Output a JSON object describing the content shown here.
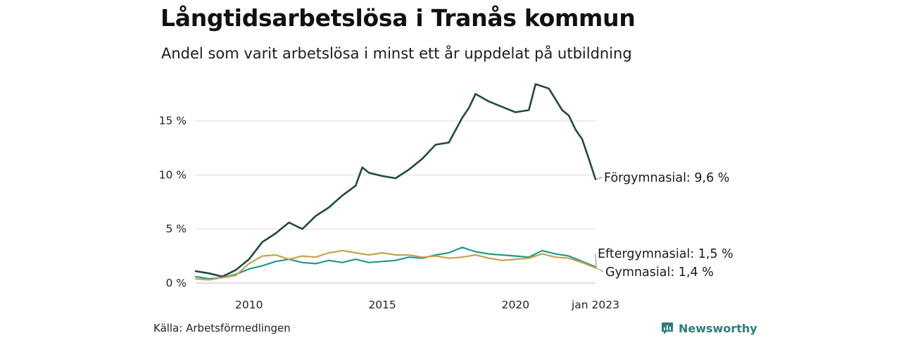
{
  "title": "Långtidsarbetslösa i Tranås kommun",
  "subtitle": "Andel som varit arbetslösa i minst ett år uppdelat på utbildning",
  "source": "Källa: Arbetsförmedlingen",
  "brand": {
    "name": "Newsworthy",
    "icon": "bar-chart-speech-icon",
    "color": "#2a7f78"
  },
  "chart_data": {
    "type": "line",
    "x_range": [
      "2008-01",
      "2023-01"
    ],
    "ylim": [
      0,
      18.5
    ],
    "grid": true,
    "y_ticks": [
      {
        "value": 0,
        "label": "0 %"
      },
      {
        "value": 5,
        "label": "5 %"
      },
      {
        "value": 10,
        "label": "10 %"
      },
      {
        "value": 15,
        "label": "15 %"
      }
    ],
    "x_ticks": [
      {
        "value": "2010-01",
        "label": "2010"
      },
      {
        "value": "2015-01",
        "label": "2015"
      },
      {
        "value": "2020-01",
        "label": "2020"
      },
      {
        "value": "2023-01",
        "label": "jan 2023"
      }
    ],
    "series": [
      {
        "name": "Förgymnasial",
        "end_label": "Förgymnasial: 9,6 %",
        "color": "#1f4a40",
        "points": [
          [
            "2008-01",
            1.1
          ],
          [
            "2008-07",
            0.9
          ],
          [
            "2009-01",
            0.6
          ],
          [
            "2009-07",
            1.2
          ],
          [
            "2010-01",
            2.2
          ],
          [
            "2010-07",
            3.8
          ],
          [
            "2011-01",
            4.6
          ],
          [
            "2011-07",
            5.6
          ],
          [
            "2012-01",
            5.0
          ],
          [
            "2012-07",
            6.2
          ],
          [
            "2013-01",
            7.0
          ],
          [
            "2013-07",
            8.1
          ],
          [
            "2014-01",
            9.0
          ],
          [
            "2014-04",
            10.7
          ],
          [
            "2014-07",
            10.2
          ],
          [
            "2015-01",
            9.9
          ],
          [
            "2015-07",
            9.7
          ],
          [
            "2016-01",
            10.5
          ],
          [
            "2016-07",
            11.5
          ],
          [
            "2017-01",
            12.8
          ],
          [
            "2017-07",
            13.0
          ],
          [
            "2018-01",
            15.3
          ],
          [
            "2018-04",
            16.2
          ],
          [
            "2018-07",
            17.5
          ],
          [
            "2019-01",
            16.8
          ],
          [
            "2019-07",
            16.3
          ],
          [
            "2020-01",
            15.8
          ],
          [
            "2020-07",
            16.0
          ],
          [
            "2020-10",
            18.4
          ],
          [
            "2021-04",
            18.0
          ],
          [
            "2021-10",
            16.0
          ],
          [
            "2022-01",
            15.5
          ],
          [
            "2022-04",
            14.2
          ],
          [
            "2022-07",
            13.3
          ],
          [
            "2022-10",
            11.5
          ],
          [
            "2023-01",
            9.6
          ]
        ]
      },
      {
        "name": "Eftergymnasial",
        "end_label": "Eftergymnasial: 1,5 %",
        "color": "#1e9a8c",
        "points": [
          [
            "2008-01",
            0.6
          ],
          [
            "2008-07",
            0.4
          ],
          [
            "2009-01",
            0.5
          ],
          [
            "2009-07",
            0.8
          ],
          [
            "2010-01",
            1.3
          ],
          [
            "2010-07",
            1.6
          ],
          [
            "2011-01",
            2.0
          ],
          [
            "2011-07",
            2.2
          ],
          [
            "2012-01",
            1.9
          ],
          [
            "2012-07",
            1.8
          ],
          [
            "2013-01",
            2.1
          ],
          [
            "2013-07",
            1.9
          ],
          [
            "2014-01",
            2.2
          ],
          [
            "2014-07",
            1.9
          ],
          [
            "2015-01",
            2.0
          ],
          [
            "2015-07",
            2.1
          ],
          [
            "2016-01",
            2.4
          ],
          [
            "2016-07",
            2.3
          ],
          [
            "2017-01",
            2.6
          ],
          [
            "2017-07",
            2.8
          ],
          [
            "2018-01",
            3.3
          ],
          [
            "2018-07",
            2.9
          ],
          [
            "2019-01",
            2.7
          ],
          [
            "2019-07",
            2.6
          ],
          [
            "2020-01",
            2.5
          ],
          [
            "2020-07",
            2.4
          ],
          [
            "2021-01",
            3.0
          ],
          [
            "2021-07",
            2.7
          ],
          [
            "2022-01",
            2.5
          ],
          [
            "2022-07",
            2.0
          ],
          [
            "2023-01",
            1.5
          ]
        ]
      },
      {
        "name": "Gymnasial",
        "end_label": "Gymnasial: 1,4 %",
        "color": "#c9a04c",
        "points": [
          [
            "2008-01",
            0.4
          ],
          [
            "2008-07",
            0.3
          ],
          [
            "2009-01",
            0.5
          ],
          [
            "2009-07",
            0.7
          ],
          [
            "2010-01",
            1.8
          ],
          [
            "2010-07",
            2.5
          ],
          [
            "2011-01",
            2.6
          ],
          [
            "2011-07",
            2.2
          ],
          [
            "2012-01",
            2.5
          ],
          [
            "2012-07",
            2.4
          ],
          [
            "2013-01",
            2.8
          ],
          [
            "2013-07",
            3.0
          ],
          [
            "2014-01",
            2.8
          ],
          [
            "2014-07",
            2.6
          ],
          [
            "2015-01",
            2.8
          ],
          [
            "2015-07",
            2.6
          ],
          [
            "2016-01",
            2.6
          ],
          [
            "2016-07",
            2.4
          ],
          [
            "2017-01",
            2.5
          ],
          [
            "2017-07",
            2.3
          ],
          [
            "2018-01",
            2.4
          ],
          [
            "2018-07",
            2.6
          ],
          [
            "2019-01",
            2.3
          ],
          [
            "2019-07",
            2.1
          ],
          [
            "2020-01",
            2.2
          ],
          [
            "2020-07",
            2.3
          ],
          [
            "2021-01",
            2.7
          ],
          [
            "2021-07",
            2.4
          ],
          [
            "2022-01",
            2.3
          ],
          [
            "2022-07",
            1.9
          ],
          [
            "2023-01",
            1.4
          ]
        ]
      }
    ]
  }
}
